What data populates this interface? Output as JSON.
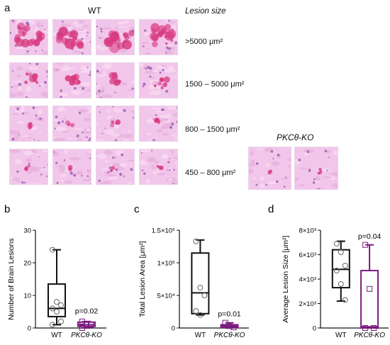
{
  "panel_a": {
    "letter": "a",
    "wt_title": "WT",
    "lesion_header": "Lesion size",
    "rows": [
      {
        "label": ">5000 μm²"
      },
      {
        "label": "1500 – 5000 μm²"
      },
      {
        "label": "800 – 1500 μm²"
      },
      {
        "label": "450 – 800 μm²"
      }
    ],
    "ko_title": "PKCθ-KO"
  },
  "colors": {
    "box_wt": "#111111",
    "box_ko": "#7b1a7e",
    "tissue_bg": "#f2c6ea",
    "lesion": "#d8387e"
  },
  "chart_data": [
    {
      "letter": "b",
      "type": "box",
      "ylabel": "Number of Brain Lesions",
      "categories": [
        "WT",
        "PKCθ-KO"
      ],
      "yticks": [
        "0",
        "10",
        "20",
        "30"
      ],
      "ylim": [
        0,
        30
      ],
      "boxes": [
        {
          "name": "WT",
          "min": 1,
          "q1": 3.5,
          "median": 6,
          "q3": 13.5,
          "max": 24,
          "points": [
            24,
            8,
            7,
            6,
            5,
            2,
            1
          ]
        },
        {
          "name": "PKCθ-KO",
          "min": 0,
          "q1": 0.5,
          "median": 1,
          "q3": 1.8,
          "max": 2,
          "points": [
            2,
            1,
            1,
            0
          ]
        }
      ],
      "pvalue": "p=0.02"
    },
    {
      "letter": "c",
      "type": "box",
      "ylabel": "Total Lesion Area [μm²]",
      "categories": [
        "WT",
        "PKCθ-KO"
      ],
      "yticks": [
        "0",
        "5×10⁴",
        "1×10⁵",
        "1.5×10⁵"
      ],
      "ylim": [
        0,
        150000
      ],
      "boxes": [
        {
          "name": "WT",
          "min": 20000,
          "q1": 22000,
          "median": 54000,
          "q3": 115000,
          "max": 135000,
          "points": [
            133000,
            62000,
            50000,
            26000,
            20000
          ]
        },
        {
          "name": "PKCθ-KO",
          "min": 0,
          "q1": 1000,
          "median": 3000,
          "q3": 5000,
          "max": 8000,
          "points": [
            8000,
            3000,
            1000
          ]
        }
      ],
      "pvalue": "p=0.01"
    },
    {
      "letter": "d",
      "type": "box",
      "ylabel": "Average Lesion Size [μm²]",
      "categories": [
        "WT",
        "PKCθ-KO"
      ],
      "yticks": [
        "0",
        "2×10³",
        "4×10³",
        "6×10³",
        "8×10³"
      ],
      "ylim": [
        0,
        8000
      ],
      "boxes": [
        {
          "name": "WT",
          "min": 2200,
          "q1": 3300,
          "median": 4800,
          "q3": 6400,
          "max": 7100,
          "points": [
            6900,
            6200,
            5100,
            4700,
            3600,
            2300
          ]
        },
        {
          "name": "PKCθ-KO",
          "min": 0,
          "q1": 0,
          "median": 100,
          "q3": 4700,
          "max": 6800,
          "points": [
            6800,
            3200,
            0,
            0
          ]
        }
      ],
      "pvalue": "p=0.04"
    }
  ]
}
